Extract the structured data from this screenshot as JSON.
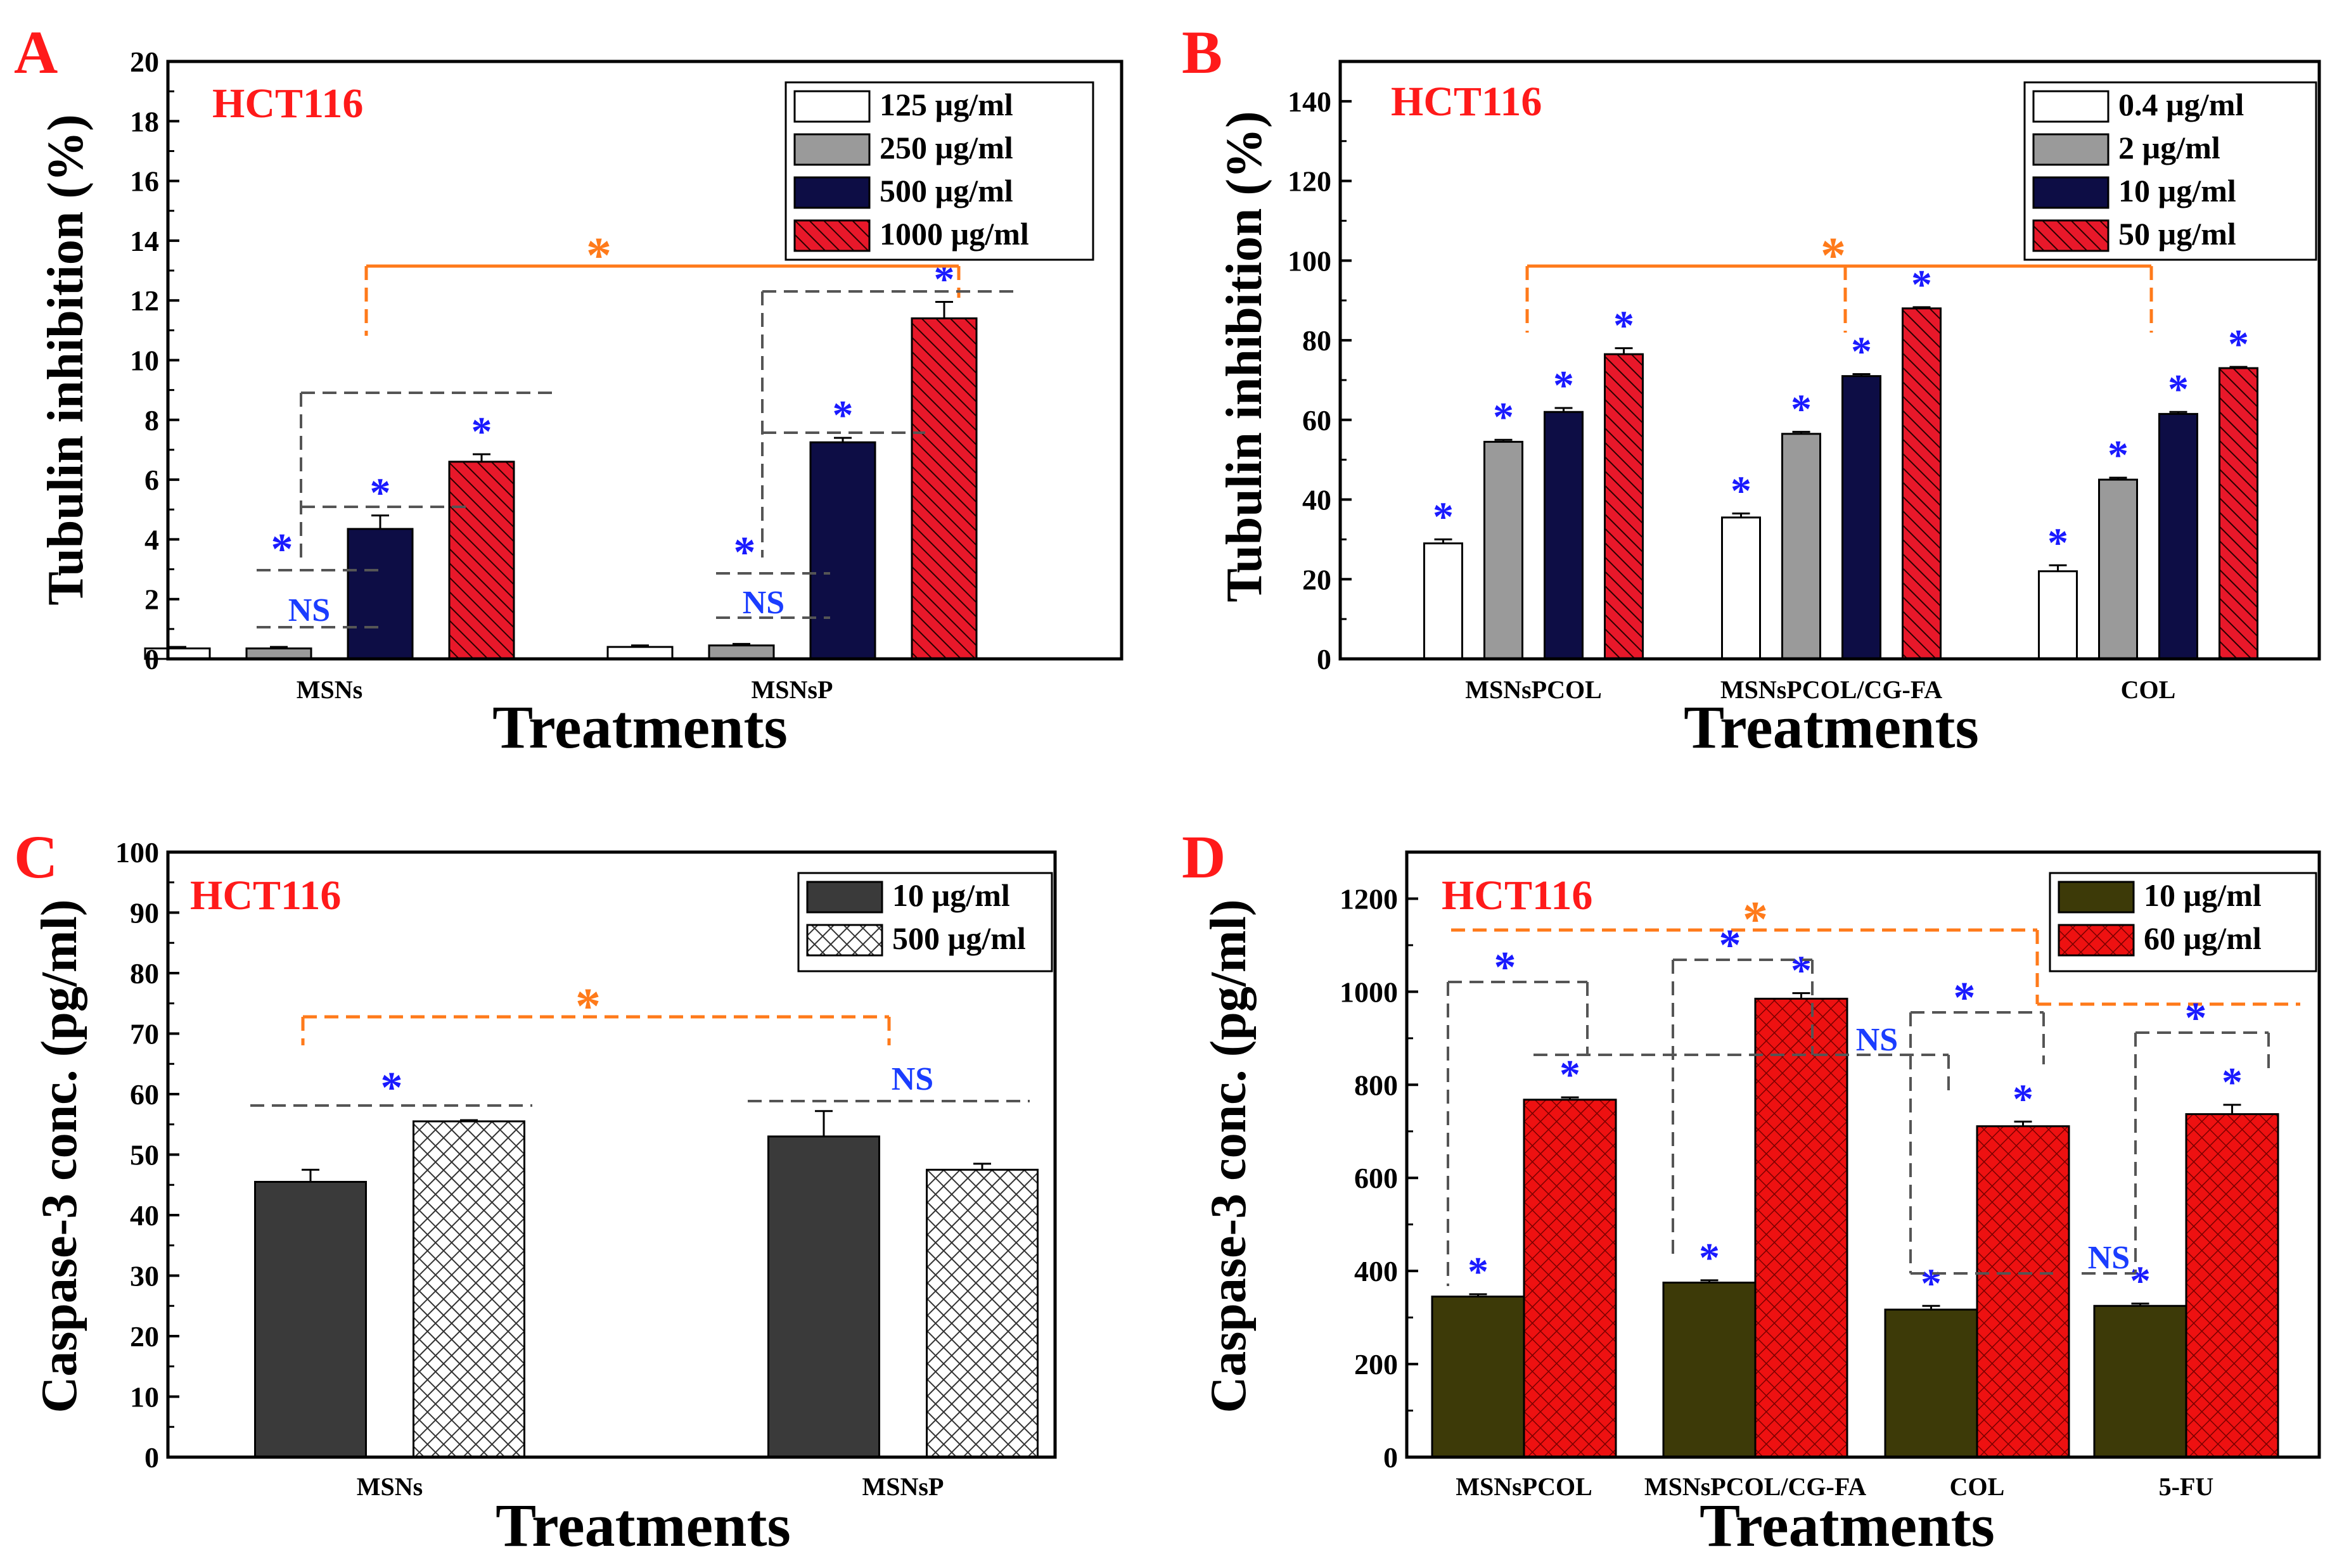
{
  "colors": {
    "panel_letter": "#ff1a1a",
    "cell_label": "#ff1a1a",
    "sig_star": "#1a1aff",
    "ns_text": "#1a3dff",
    "orange_bracket": "#ff7a1a",
    "gray_bracket": "#555555",
    "white_bar": "#ffffff",
    "gray_bar": "#9a9a9a",
    "navy_bar": "#0d0d45",
    "red_bar": "#e8182a",
    "dark_gray_bar": "#3a3a3a",
    "olive_bar": "#3d3a08",
    "red_cross_bar": "#ee1111"
  },
  "chart_data": [
    {
      "panel": "A",
      "type": "bar",
      "cell_label": "HCT116",
      "xlabel": "Treatments",
      "ylabel": "Tubulin inhibition (%)",
      "ylim": [
        0,
        20
      ],
      "yticks": [
        0,
        2,
        4,
        6,
        8,
        10,
        12,
        14,
        16,
        18,
        20
      ],
      "categories": [
        "MSNs",
        "MSNsP"
      ],
      "series": [
        {
          "name": "125 µg/ml",
          "values": [
            0.35,
            0.4
          ],
          "errors": [
            0.05,
            0.05
          ],
          "style": "white"
        },
        {
          "name": "250 µg/ml",
          "values": [
            0.35,
            0.45
          ],
          "errors": [
            0.05,
            0.05
          ],
          "style": "gray"
        },
        {
          "name": "500 µg/ml",
          "values": [
            4.35,
            7.25
          ],
          "errors": [
            0.45,
            0.15
          ],
          "style": "navy"
        },
        {
          "name": "1000 µg/ml",
          "values": [
            6.6,
            11.4
          ],
          "errors": [
            0.25,
            0.55
          ],
          "style": "red-hatch"
        }
      ],
      "annotations": {
        "stars": 6,
        "ns": [
          "NS",
          "NS"
        ],
        "group_star": "*"
      }
    },
    {
      "panel": "B",
      "type": "bar",
      "cell_label": "HCT116",
      "xlabel": "Treatments",
      "ylabel": "Tubulin inhibition (%)",
      "ylim": [
        0,
        150
      ],
      "yticks": [
        0,
        20,
        40,
        60,
        80,
        100,
        120,
        140
      ],
      "categories": [
        "MSNsPCOL",
        "MSNsPCOL/CG-FA",
        "COL"
      ],
      "series": [
        {
          "name": "0.4 µg/ml",
          "values": [
            29,
            35.5,
            22
          ],
          "errors": [
            1,
            1,
            1.5
          ],
          "style": "white"
        },
        {
          "name": "2 µg/ml",
          "values": [
            54.5,
            56.5,
            45
          ],
          "errors": [
            0.5,
            0.5,
            0.5
          ],
          "style": "gray"
        },
        {
          "name": "10 µg/ml",
          "values": [
            62,
            71,
            61.5
          ],
          "errors": [
            1,
            0.5,
            0.5
          ],
          "style": "navy"
        },
        {
          "name": "50 µg/ml",
          "values": [
            76.5,
            88,
            73
          ],
          "errors": [
            1.5,
            0.3,
            0.3
          ],
          "style": "red-hatch"
        }
      ],
      "annotations": {
        "stars": 12,
        "group_star": "*"
      }
    },
    {
      "panel": "C",
      "type": "bar",
      "cell_label": "HCT116",
      "xlabel": "Treatments",
      "ylabel": "Caspase-3 conc. (pg/ml)",
      "ylim": [
        0,
        100
      ],
      "yticks": [
        0,
        10,
        20,
        30,
        40,
        50,
        60,
        70,
        80,
        90,
        100
      ],
      "categories": [
        "MSNs",
        "MSNsP"
      ],
      "series": [
        {
          "name": "10 µg/ml",
          "values": [
            45.5,
            53
          ],
          "errors": [
            2,
            4.2
          ],
          "style": "dark-gray"
        },
        {
          "name": "500 µg/ml",
          "values": [
            55.5,
            47.5
          ],
          "errors": [
            0.2,
            1
          ],
          "style": "gray-cross"
        }
      ],
      "annotations": {
        "stars": [
          "*"
        ],
        "ns": [
          "NS"
        ],
        "group_star": "*"
      }
    },
    {
      "panel": "D",
      "type": "bar",
      "cell_label": "HCT116",
      "xlabel": "Treatments",
      "ylabel": "Caspase-3 conc. (pg/ml)",
      "ylim": [
        0,
        1300
      ],
      "yticks": [
        0,
        200,
        400,
        600,
        800,
        1000,
        1200
      ],
      "categories": [
        "MSNsPCOL",
        "MSNsPCOL/CG-FA",
        "COL",
        "5-FU"
      ],
      "series": [
        {
          "name": "10 µg/ml",
          "values": [
            345,
            375,
            317,
            325
          ],
          "errors": [
            5,
            5,
            8,
            5
          ],
          "style": "olive"
        },
        {
          "name": "60 µg/ml",
          "values": [
            768,
            985,
            711,
            737
          ],
          "errors": [
            5,
            12,
            10,
            20
          ],
          "style": "red-cross"
        }
      ],
      "annotations": {
        "stars": 12,
        "ns": [
          "NS",
          "NS"
        ],
        "group_star": "*"
      }
    }
  ]
}
